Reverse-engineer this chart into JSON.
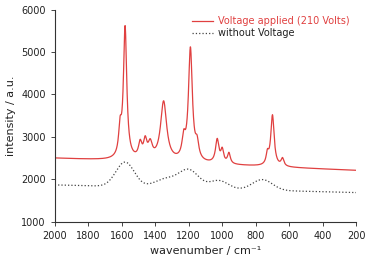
{
  "title": "",
  "xlabel": "wavenumber / cm⁻¹",
  "ylabel": "intensity / a.u.",
  "xlim": [
    2000,
    200
  ],
  "ylim": [
    1000,
    6000
  ],
  "xticks": [
    2000,
    1800,
    1600,
    1400,
    1200,
    1000,
    800,
    600,
    400,
    200
  ],
  "yticks": [
    1000,
    2000,
    3000,
    4000,
    5000,
    6000
  ],
  "line_voltage_color": "#e04040",
  "line_novoltage_color": "#444444",
  "legend_voltage": "Voltage applied (210 Volts)",
  "legend_novoltage": "without Voltage",
  "background_color": "#ffffff",
  "figsize": [
    3.71,
    2.62
  ],
  "dpi": 100
}
